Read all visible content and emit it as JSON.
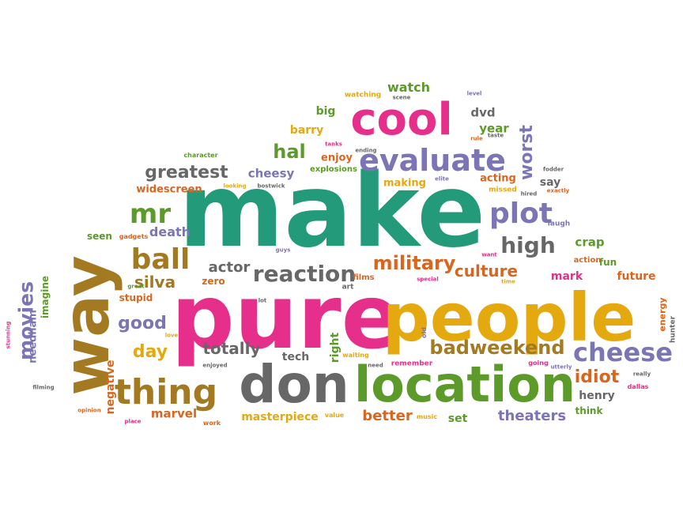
{
  "palette": {
    "green_teal": "#239a7a",
    "magenta": "#e62e8b",
    "gold": "#e5a910",
    "grey": "#676767",
    "purple": "#7b74b5",
    "olive_green": "#5c9a2a",
    "orange": "#d9661f",
    "brown": "#a37a22"
  },
  "words": [
    {
      "text": "make",
      "color": "#239a7a"
    },
    {
      "text": "pure",
      "color": "#e62e8b"
    },
    {
      "text": "people",
      "color": "#e5a910"
    },
    {
      "text": "way",
      "color": "#a37a22"
    },
    {
      "text": "don",
      "color": "#676767"
    },
    {
      "text": "location",
      "color": "#5c9a2a"
    },
    {
      "text": "cool",
      "color": "#e62e8b"
    },
    {
      "text": "evaluate",
      "color": "#7b74b5"
    },
    {
      "text": "thing",
      "color": "#a37a22"
    },
    {
      "text": "cheese",
      "color": "#7b74b5"
    },
    {
      "text": "plot",
      "color": "#7b74b5"
    },
    {
      "text": "high",
      "color": "#676767"
    },
    {
      "text": "reaction",
      "color": "#676767"
    },
    {
      "text": "ball",
      "color": "#a37a22"
    },
    {
      "text": "mr",
      "color": "#5c9a2a"
    },
    {
      "text": "military",
      "color": "#d9661f"
    },
    {
      "text": "badweekend",
      "color": "#a37a22"
    },
    {
      "text": "movies",
      "color": "#7b74b5"
    },
    {
      "text": "good",
      "color": "#7b74b5"
    },
    {
      "text": "worst",
      "color": "#7b74b5"
    },
    {
      "text": "greatest",
      "color": "#676767"
    },
    {
      "text": "hal",
      "color": "#5c9a2a"
    },
    {
      "text": "culture",
      "color": "#d9661f"
    },
    {
      "text": "day",
      "color": "#e5a910"
    },
    {
      "text": "totally",
      "color": "#676767"
    },
    {
      "text": "silva",
      "color": "#a37a22"
    },
    {
      "text": "actor",
      "color": "#676767"
    },
    {
      "text": "better",
      "color": "#d9661f"
    },
    {
      "text": "theaters",
      "color": "#7b74b5"
    },
    {
      "text": "idiot",
      "color": "#d9661f"
    },
    {
      "text": "watch",
      "color": "#5c9a2a"
    },
    {
      "text": "cheesy",
      "color": "#7b74b5"
    },
    {
      "text": "death",
      "color": "#7b74b5"
    },
    {
      "text": "crap",
      "color": "#5c9a2a"
    },
    {
      "text": "mark",
      "color": "#e62e8b"
    },
    {
      "text": "future",
      "color": "#d9661f"
    },
    {
      "text": "henry",
      "color": "#676767"
    },
    {
      "text": "marvel",
      "color": "#d9661f"
    },
    {
      "text": "masterpiece",
      "color": "#e5a910"
    },
    {
      "text": "negative",
      "color": "#d9661f"
    },
    {
      "text": "needham",
      "color": "#7b74b5"
    },
    {
      "text": "imagine",
      "color": "#5c9a2a"
    },
    {
      "text": "right",
      "color": "#5c9a2a"
    },
    {
      "text": "tech",
      "color": "#676767"
    },
    {
      "text": "dvd",
      "color": "#676767"
    },
    {
      "text": "year",
      "color": "#5c9a2a"
    },
    {
      "text": "barry",
      "color": "#e5a910"
    },
    {
      "text": "big",
      "color": "#5c9a2a"
    },
    {
      "text": "enjoy",
      "color": "#d9661f"
    },
    {
      "text": "acting",
      "color": "#d9661f"
    },
    {
      "text": "say",
      "color": "#676767"
    },
    {
      "text": "making",
      "color": "#e5a910"
    },
    {
      "text": "widescreen",
      "color": "#d9661f"
    },
    {
      "text": "seen",
      "color": "#5c9a2a"
    },
    {
      "text": "stupid",
      "color": "#d9661f"
    },
    {
      "text": "zero",
      "color": "#d9661f"
    },
    {
      "text": "fun",
      "color": "#5c9a2a"
    },
    {
      "text": "think",
      "color": "#5c9a2a"
    },
    {
      "text": "set",
      "color": "#5c9a2a"
    },
    {
      "text": "energy",
      "color": "#d9661f"
    },
    {
      "text": "hunter",
      "color": "#676767"
    },
    {
      "text": "explosions",
      "color": "#5c9a2a"
    },
    {
      "text": "watching",
      "color": "#e5a910"
    },
    {
      "text": "gadgets",
      "color": "#d9661f"
    },
    {
      "text": "character",
      "color": "#5c9a2a"
    },
    {
      "text": "looking",
      "color": "#e5a910"
    },
    {
      "text": "bostwick",
      "color": "#676767"
    },
    {
      "text": "elite",
      "color": "#7b74b5"
    },
    {
      "text": "missed",
      "color": "#e5a910"
    },
    {
      "text": "hired",
      "color": "#676767"
    },
    {
      "text": "exactly",
      "color": "#d9661f"
    },
    {
      "text": "laugh",
      "color": "#7b74b5"
    },
    {
      "text": "fodder",
      "color": "#676767"
    },
    {
      "text": "want",
      "color": "#e62e8b"
    },
    {
      "text": "action",
      "color": "#d9661f"
    },
    {
      "text": "time",
      "color": "#e5a910"
    },
    {
      "text": "films",
      "color": "#d9661f"
    },
    {
      "text": "special",
      "color": "#e62e8b"
    },
    {
      "text": "art",
      "color": "#676767"
    },
    {
      "text": "lot",
      "color": "#676767"
    },
    {
      "text": "guys",
      "color": "#7b74b5"
    },
    {
      "text": "great",
      "color": "#5c9a2a"
    },
    {
      "text": "love",
      "color": "#e5a910"
    },
    {
      "text": "enjoyed",
      "color": "#676767"
    },
    {
      "text": "need",
      "color": "#676767"
    },
    {
      "text": "waiting",
      "color": "#e5a910"
    },
    {
      "text": "remember",
      "color": "#e62e8b"
    },
    {
      "text": "old",
      "color": "#7b74b5"
    },
    {
      "text": "going",
      "color": "#e62e8b"
    },
    {
      "text": "utterly",
      "color": "#7b74b5"
    },
    {
      "text": "really",
      "color": "#676767"
    },
    {
      "text": "dallas",
      "color": "#e62e8b"
    },
    {
      "text": "value",
      "color": "#e5a910"
    },
    {
      "text": "music",
      "color": "#e5a910"
    },
    {
      "text": "work",
      "color": "#d9661f"
    },
    {
      "text": "place",
      "color": "#e62e8b"
    },
    {
      "text": "opinion",
      "color": "#d9661f"
    },
    {
      "text": "filming",
      "color": "#676767"
    },
    {
      "text": "stunning",
      "color": "#e62e8b"
    },
    {
      "text": "level",
      "color": "#7b74b5"
    },
    {
      "text": "scene",
      "color": "#676767"
    },
    {
      "text": "rule",
      "color": "#d9661f"
    },
    {
      "text": "taste",
      "color": "#676767"
    },
    {
      "text": "tanks",
      "color": "#e62e8b"
    },
    {
      "text": "ending",
      "color": "#676767"
    }
  ]
}
